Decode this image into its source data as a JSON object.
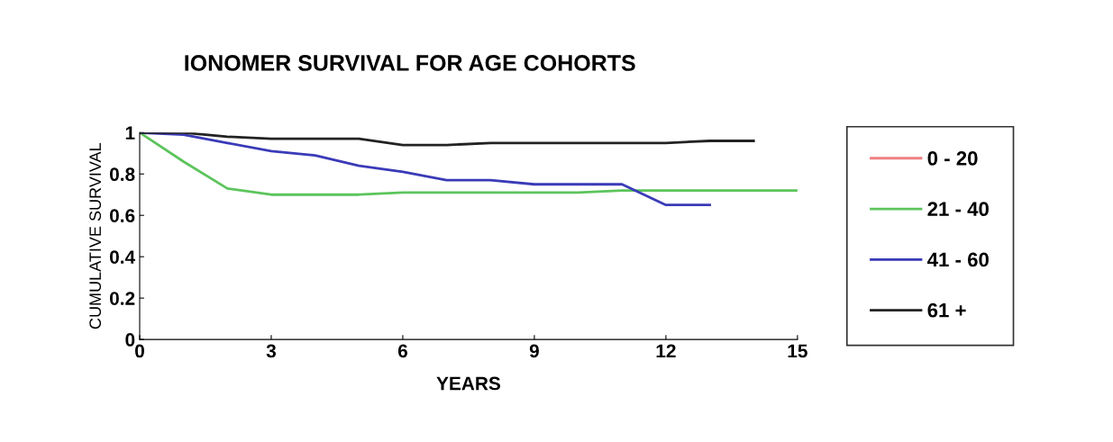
{
  "chart_data": {
    "type": "line",
    "title": "IONOMER SURVIVAL FOR AGE COHORTS",
    "xlabel": "YEARS",
    "ylabel": "CUMULATIVE SURVIVAL",
    "x": [
      0,
      1,
      2,
      3,
      4,
      5,
      6,
      7,
      8,
      9,
      10,
      11,
      12,
      13,
      14,
      15
    ],
    "series": [
      {
        "name": "0 - 20",
        "color": "#f08080",
        "values": [
          null,
          null,
          null,
          null,
          null,
          null,
          null,
          null,
          null,
          null,
          null,
          null,
          null,
          null,
          null,
          null
        ]
      },
      {
        "name": "21 - 40",
        "color": "#5cc45c",
        "values": [
          1,
          0.86,
          0.73,
          0.7,
          0.7,
          0.7,
          0.71,
          0.71,
          0.71,
          0.71,
          0.71,
          0.72,
          0.72,
          0.72,
          0.72,
          0.72
        ]
      },
      {
        "name": "41 - 60",
        "color": "#3a3ab8",
        "values": [
          1,
          0.99,
          0.95,
          0.91,
          0.89,
          0.84,
          0.81,
          0.77,
          0.77,
          0.75,
          0.75,
          0.75,
          0.65,
          0.65,
          null,
          null
        ]
      },
      {
        "name": "61 +",
        "color": "#222222",
        "values": [
          1,
          1,
          0.98,
          0.97,
          0.97,
          0.97,
          0.94,
          0.94,
          0.95,
          0.95,
          0.95,
          0.95,
          0.95,
          0.96,
          0.96,
          null
        ]
      }
    ],
    "xlim": [
      0,
      15
    ],
    "xticks": [
      0,
      3,
      6,
      9,
      12,
      15
    ],
    "ylim": [
      0,
      1
    ],
    "yticks": [
      0,
      0.2,
      0.4,
      0.6,
      0.8,
      1
    ],
    "grid": false,
    "legend": "right",
    "marker": "none",
    "line_style": "solid"
  }
}
